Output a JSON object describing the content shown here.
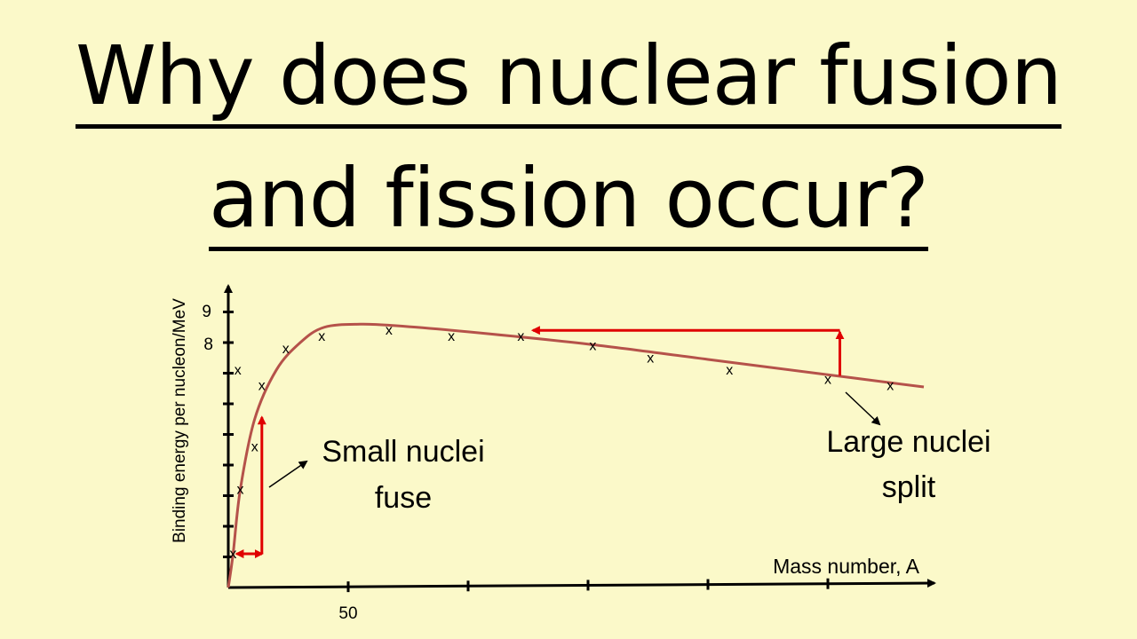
{
  "title": {
    "line1": "Why does nuclear fusion",
    "line2": "and fission occur?"
  },
  "colors": {
    "background": "#fbf9c9",
    "curve": "#b5524a",
    "arrow": "#e00000",
    "axis": "#000000"
  },
  "chart_data": {
    "type": "line",
    "xlabel": "Mass number, A",
    "ylabel": "Binding energy per nucleon/MeV",
    "x_tick_label": "50",
    "y_tick_labels": [
      "8",
      "9"
    ],
    "xlim": [
      0,
      290
    ],
    "ylim": [
      0,
      9
    ],
    "data_points": [
      {
        "x": 2,
        "y": 1.1
      },
      {
        "x": 5,
        "y": 3.2
      },
      {
        "x": 11,
        "y": 4.6
      },
      {
        "x": 4,
        "y": 7.1
      },
      {
        "x": 14,
        "y": 6.6
      },
      {
        "x": 24,
        "y": 7.8
      },
      {
        "x": 39,
        "y": 8.2
      },
      {
        "x": 67,
        "y": 8.4
      },
      {
        "x": 93,
        "y": 8.2
      },
      {
        "x": 122,
        "y": 8.2
      },
      {
        "x": 152,
        "y": 7.9
      },
      {
        "x": 176,
        "y": 7.5
      },
      {
        "x": 209,
        "y": 7.1
      },
      {
        "x": 250,
        "y": 6.8
      },
      {
        "x": 276,
        "y": 6.6
      }
    ],
    "curve": [
      {
        "x": 0,
        "y": 0
      },
      {
        "x": 2,
        "y": 1.1
      },
      {
        "x": 5,
        "y": 3.2
      },
      {
        "x": 11,
        "y": 5.5
      },
      {
        "x": 20,
        "y": 7.1
      },
      {
        "x": 30,
        "y": 8.0
      },
      {
        "x": 40,
        "y": 8.5
      },
      {
        "x": 55,
        "y": 8.6
      },
      {
        "x": 70,
        "y": 8.55
      },
      {
        "x": 100,
        "y": 8.35
      },
      {
        "x": 150,
        "y": 7.95
      },
      {
        "x": 200,
        "y": 7.45
      },
      {
        "x": 250,
        "y": 6.95
      },
      {
        "x": 290,
        "y": 6.55
      }
    ],
    "annotations": {
      "fusion_label_1": "Small nuclei",
      "fusion_label_2": "fuse",
      "fission_label_1": "Large nuclei",
      "fission_label_2": "split"
    },
    "fusion_arrow": {
      "start": {
        "x": 2,
        "y": 1.1
      },
      "corner": {
        "x": 14,
        "y": 1.1
      },
      "end": {
        "x": 14,
        "y": 5.5
      }
    },
    "fission_arrow": {
      "start": {
        "x": 255,
        "y": 6.8
      },
      "corner": {
        "x": 255,
        "y": 8.4
      },
      "end": {
        "x": 127,
        "y": 8.4
      }
    }
  }
}
